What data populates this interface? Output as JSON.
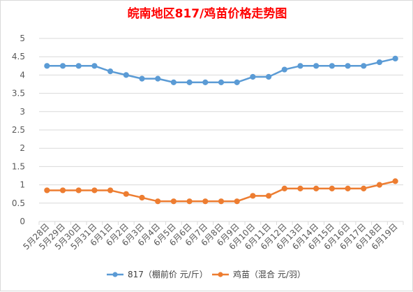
{
  "colors": {
    "series1": "#5b9bd5",
    "series2": "#ed7d31",
    "title": "#ff0000",
    "grid": "#d9d9d9"
  },
  "chart_data": {
    "type": "line",
    "title": "皖南地区817/鸡苗价格走势图",
    "xlabel": "",
    "ylabel": "",
    "ylim": [
      0,
      5
    ],
    "yticks": [
      "0",
      "0.5",
      "1",
      "1.5",
      "2",
      "2.5",
      "3",
      "3.5",
      "4",
      "4.5",
      "5"
    ],
    "grid": "horizontal",
    "legend_position": "bottom",
    "categories": [
      "5月28日",
      "5月29日",
      "5月30日",
      "5月31日",
      "6月1日",
      "6月2日",
      "6月3日",
      "6月4日",
      "6月5日",
      "6月6日",
      "6月7日",
      "6月8日",
      "6月9日",
      "6月10日",
      "6月11日",
      "6月12日",
      "6月13日",
      "6月14日",
      "6月15日",
      "6月16日",
      "6月17日",
      "6月18日",
      "6月19日"
    ],
    "series": [
      {
        "name": "817（棚前价 元/斤）",
        "values": [
          4.25,
          4.25,
          4.25,
          4.25,
          4.1,
          4.0,
          3.9,
          3.9,
          3.8,
          3.8,
          3.8,
          3.8,
          3.8,
          3.95,
          3.95,
          4.15,
          4.25,
          4.25,
          4.25,
          4.25,
          4.25,
          4.35,
          4.45
        ]
      },
      {
        "name": "鸡苗（混合 元/羽）",
        "values": [
          0.85,
          0.85,
          0.85,
          0.85,
          0.85,
          0.75,
          0.65,
          0.55,
          0.55,
          0.55,
          0.55,
          0.55,
          0.55,
          0.7,
          0.7,
          0.9,
          0.9,
          0.9,
          0.9,
          0.9,
          0.9,
          1.0,
          1.1
        ]
      }
    ]
  }
}
